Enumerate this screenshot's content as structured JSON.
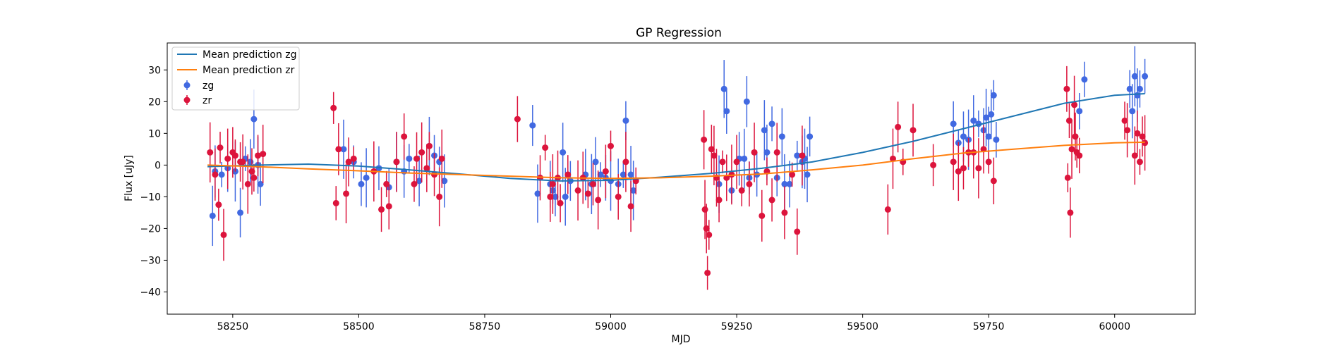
{
  "chart_data": {
    "type": "scatter",
    "title": "GP Regression",
    "xlabel": "MJD",
    "ylabel": "Flux [uJy]",
    "xlim": [
      58120,
      60160
    ],
    "ylim": [
      -47,
      38.5
    ],
    "x_ticks": [
      58250,
      58500,
      58750,
      59000,
      59250,
      59500,
      59750,
      60000
    ],
    "y_ticks": [
      -40,
      -30,
      -20,
      -10,
      0,
      10,
      20,
      30
    ],
    "grid": false,
    "legend_position": "upper-left",
    "legend": [
      {
        "label": "Mean prediction zg",
        "kind": "line",
        "color": "#1f77b4"
      },
      {
        "label": "Mean prediction zr",
        "kind": "line",
        "color": "#ff7f0e"
      },
      {
        "label": "zg",
        "kind": "errorbar",
        "color": "#4169e1"
      },
      {
        "label": "zr",
        "kind": "errorbar",
        "color": "#dc143c"
      }
    ],
    "lines": [
      {
        "name": "Mean prediction zg",
        "color": "#1f77b4",
        "x": [
          58200,
          58300,
          58400,
          58500,
          58600,
          58700,
          58800,
          58900,
          59000,
          59100,
          59200,
          59300,
          59400,
          59500,
          59600,
          59700,
          59800,
          59900,
          60000,
          60060
        ],
        "y": [
          -0.5,
          0.0,
          0.3,
          -0.3,
          -1.5,
          -2.8,
          -4.2,
          -5.0,
          -4.8,
          -3.8,
          -2.6,
          -1.0,
          1.0,
          4.0,
          7.5,
          11.5,
          15.5,
          19.5,
          22.0,
          22.5
        ]
      },
      {
        "name": "Mean prediction zr",
        "color": "#ff7f0e",
        "x": [
          58200,
          58300,
          58400,
          58500,
          58600,
          58700,
          58800,
          58900,
          59000,
          59100,
          59200,
          59300,
          59400,
          59500,
          59600,
          59700,
          59800,
          59900,
          60000,
          60060
        ],
        "y": [
          0.0,
          -0.5,
          -1.2,
          -1.8,
          -2.5,
          -3.0,
          -3.5,
          -4.0,
          -4.2,
          -4.0,
          -3.5,
          -2.8,
          -1.5,
          0.0,
          2.0,
          3.8,
          5.0,
          6.2,
          7.0,
          7.2
        ]
      }
    ],
    "series": [
      {
        "name": "zg",
        "color": "#4169e1",
        "x": [
          58210,
          58215,
          58228,
          58240,
          58255,
          58265,
          58275,
          58285,
          58292,
          58300,
          58305,
          58470,
          58490,
          58505,
          58515,
          58540,
          58560,
          58575,
          58590,
          58600,
          58620,
          58640,
          58650,
          58660,
          58670,
          58845,
          58855,
          58880,
          58885,
          58890,
          58905,
          58910,
          58920,
          58950,
          58962,
          58970,
          58980,
          58990,
          59000,
          59015,
          59025,
          59030,
          59040,
          59045,
          59215,
          59225,
          59230,
          59240,
          59255,
          59265,
          59270,
          59275,
          59290,
          59305,
          59310,
          59320,
          59330,
          59340,
          59345,
          59355,
          59370,
          59380,
          59385,
          59390,
          59395,
          59680,
          59690,
          59700,
          59710,
          59720,
          59730,
          59740,
          59745,
          59750,
          59755,
          59760,
          59765,
          59930,
          59940,
          60030,
          60035,
          60040,
          60045,
          60050,
          60060
        ],
        "y": [
          -16,
          -2,
          -3,
          -1,
          -2,
          -15,
          2,
          1,
          14.5,
          0,
          -6,
          5,
          1,
          -6,
          -4,
          -1,
          -7,
          1,
          -2,
          2,
          -5,
          6,
          3,
          1,
          -5,
          12.5,
          -9,
          -6,
          -8,
          -10,
          4,
          -10,
          -5,
          -3,
          -6,
          1,
          -3,
          -4,
          -5,
          -6,
          -3,
          14,
          -3,
          -8,
          -6,
          24,
          17,
          -8,
          2,
          2,
          20,
          -4,
          -3,
          11,
          4,
          13,
          -4,
          9,
          -6,
          -6,
          3,
          1,
          2,
          -3,
          9,
          13,
          7,
          9,
          8,
          14,
          13,
          11,
          15,
          9,
          16,
          22,
          8,
          17,
          27,
          24,
          17,
          28,
          22,
          24,
          28
        ]
      },
      {
        "name": "zr",
        "color": "#dc143c",
        "x": [
          58205,
          58215,
          58222,
          58225,
          58232,
          58240,
          58250,
          58255,
          58265,
          58270,
          58280,
          58288,
          58292,
          58300,
          58310,
          58450,
          58455,
          58460,
          58475,
          58480,
          58490,
          58530,
          58545,
          58555,
          58560,
          58575,
          58590,
          58610,
          58615,
          58625,
          58635,
          58640,
          58650,
          58660,
          58665,
          58815,
          58860,
          58870,
          58880,
          58885,
          58895,
          58900,
          58915,
          58935,
          58945,
          58955,
          58965,
          58975,
          58990,
          59000,
          59015,
          59030,
          59040,
          59050,
          59185,
          59187,
          59190,
          59192,
          59195,
          59200,
          59205,
          59210,
          59215,
          59222,
          59230,
          59240,
          59250,
          59260,
          59275,
          59285,
          59300,
          59310,
          59320,
          59330,
          59345,
          59360,
          59370,
          59380,
          59550,
          59560,
          59570,
          59580,
          59600,
          59640,
          59680,
          59690,
          59700,
          59710,
          59720,
          59730,
          59740,
          59750,
          59760,
          59905,
          59907,
          59910,
          59912,
          59915,
          59920,
          59922,
          59925,
          59930,
          60020,
          60025,
          60040,
          60045,
          60050,
          60055,
          60060
        ],
        "y": [
          4,
          -3,
          -12.5,
          5.5,
          -22,
          2,
          4,
          3,
          1,
          1,
          -6,
          -2,
          -4,
          3,
          3.5,
          18,
          -12,
          5,
          -9,
          1,
          2,
          -2,
          -14,
          -6,
          -13,
          1,
          9,
          -6,
          2,
          4,
          -1,
          6,
          -3,
          -10,
          2,
          14.5,
          -4,
          5.5,
          -10,
          -6,
          -4,
          -12,
          -3,
          -8,
          -4,
          -9,
          -6,
          -11,
          -2,
          6,
          -10,
          1,
          -13,
          -5,
          8,
          -14,
          -20,
          -34,
          -22,
          5,
          3,
          -4,
          -11,
          1,
          -4,
          -3,
          1,
          -8,
          -6,
          4,
          -16,
          -2,
          -11,
          4,
          -15,
          -3,
          -21,
          3,
          -14,
          2,
          12,
          1,
          11,
          0,
          1,
          -2,
          -1,
          4,
          4,
          -1,
          5,
          1,
          -5,
          24,
          -4,
          14,
          -15,
          5,
          19,
          9,
          4,
          3,
          14,
          11,
          3,
          10,
          1,
          9,
          7
        ]
      }
    ]
  }
}
